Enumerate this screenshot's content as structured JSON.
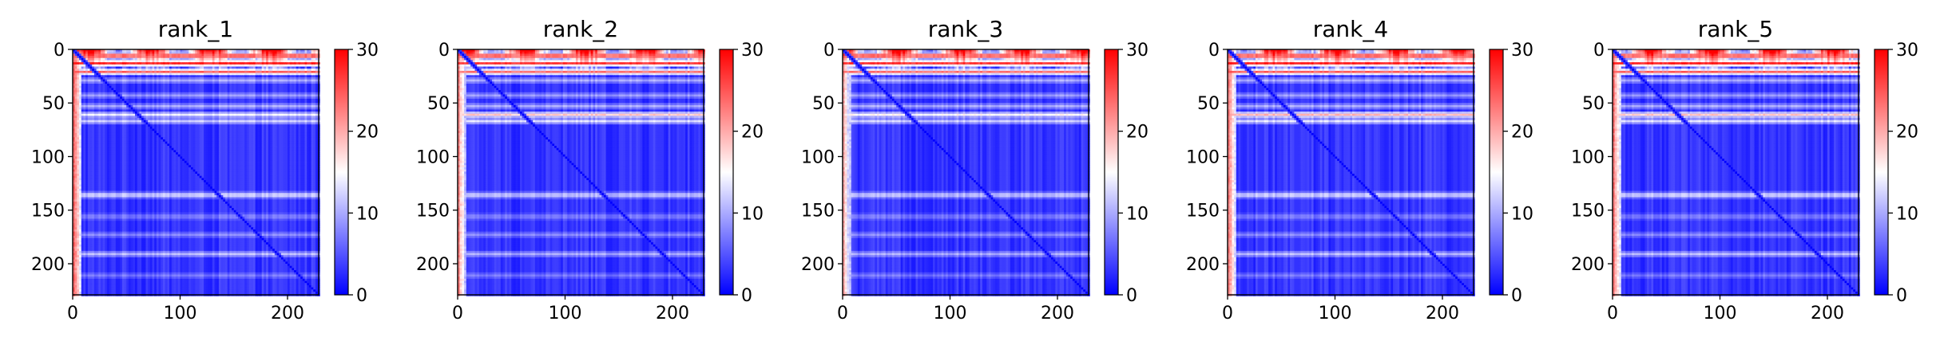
{
  "chart_data": [
    {
      "type": "heatmap",
      "title": "rank_1",
      "x_ticks": [
        0,
        100,
        200
      ],
      "y_ticks": [
        0,
        50,
        100,
        150,
        200
      ],
      "xlim": [
        0,
        229
      ],
      "ylim": [
        229,
        0
      ],
      "n_residues": 229,
      "colormap": "bwr",
      "colorbar": {
        "min": 0,
        "max": 30,
        "ticks": [
          0,
          10,
          20,
          30
        ]
      },
      "features": {
        "top_band_value": 30,
        "left_band_value": 22,
        "background_value": 3,
        "diagonal_value": 0,
        "horizontal_stripes": [
          {
            "row": 5,
            "value": 30
          },
          {
            "row": 12,
            "value": 28
          },
          {
            "row": 20,
            "value": 24
          },
          {
            "row": 28,
            "value": 10
          },
          {
            "row": 42,
            "value": 9
          },
          {
            "row": 52,
            "value": 10
          },
          {
            "row": 60,
            "value": 14
          },
          {
            "row": 66,
            "value": 12
          },
          {
            "row": 135,
            "value": 14
          },
          {
            "row": 155,
            "value": 8
          },
          {
            "row": 172,
            "value": 8
          },
          {
            "row": 190,
            "value": 11
          },
          {
            "row": 210,
            "value": 7
          }
        ]
      }
    },
    {
      "type": "heatmap",
      "title": "rank_2",
      "x_ticks": [
        0,
        100,
        200
      ],
      "y_ticks": [
        0,
        50,
        100,
        150,
        200
      ],
      "xlim": [
        0,
        229
      ],
      "ylim": [
        229,
        0
      ],
      "n_residues": 229,
      "colormap": "bwr",
      "colorbar": {
        "min": 0,
        "max": 30,
        "ticks": [
          0,
          10,
          20,
          30
        ]
      },
      "features": {
        "top_band_value": 30,
        "left_band_value": 20,
        "background_value": 3,
        "diagonal_value": 0,
        "horizontal_stripes": [
          {
            "row": 5,
            "value": 30
          },
          {
            "row": 12,
            "value": 27
          },
          {
            "row": 20,
            "value": 23
          },
          {
            "row": 28,
            "value": 10
          },
          {
            "row": 42,
            "value": 9
          },
          {
            "row": 52,
            "value": 10
          },
          {
            "row": 60,
            "value": 18
          },
          {
            "row": 66,
            "value": 13
          },
          {
            "row": 135,
            "value": 13
          },
          {
            "row": 155,
            "value": 8
          },
          {
            "row": 172,
            "value": 8
          },
          {
            "row": 190,
            "value": 10
          },
          {
            "row": 210,
            "value": 7
          }
        ]
      }
    },
    {
      "type": "heatmap",
      "title": "rank_3",
      "x_ticks": [
        0,
        100,
        200
      ],
      "y_ticks": [
        0,
        50,
        100,
        150,
        200
      ],
      "xlim": [
        0,
        229
      ],
      "ylim": [
        229,
        0
      ],
      "n_residues": 229,
      "colormap": "bwr",
      "colorbar": {
        "min": 0,
        "max": 30,
        "ticks": [
          0,
          10,
          20,
          30
        ]
      },
      "features": {
        "top_band_value": 30,
        "left_band_value": 18,
        "background_value": 3,
        "diagonal_value": 0,
        "horizontal_stripes": [
          {
            "row": 5,
            "value": 30
          },
          {
            "row": 12,
            "value": 27
          },
          {
            "row": 20,
            "value": 23
          },
          {
            "row": 28,
            "value": 10
          },
          {
            "row": 42,
            "value": 9
          },
          {
            "row": 52,
            "value": 10
          },
          {
            "row": 60,
            "value": 15
          },
          {
            "row": 66,
            "value": 12
          },
          {
            "row": 135,
            "value": 13
          },
          {
            "row": 155,
            "value": 8
          },
          {
            "row": 172,
            "value": 8
          },
          {
            "row": 190,
            "value": 10
          },
          {
            "row": 210,
            "value": 7
          }
        ]
      }
    },
    {
      "type": "heatmap",
      "title": "rank_4",
      "x_ticks": [
        0,
        100,
        200
      ],
      "y_ticks": [
        0,
        50,
        100,
        150,
        200
      ],
      "xlim": [
        0,
        229
      ],
      "ylim": [
        229,
        0
      ],
      "n_residues": 229,
      "colormap": "bwr",
      "colorbar": {
        "min": 0,
        "max": 30,
        "ticks": [
          0,
          10,
          20,
          30
        ]
      },
      "features": {
        "top_band_value": 30,
        "left_band_value": 20,
        "background_value": 3,
        "diagonal_value": 0,
        "horizontal_stripes": [
          {
            "row": 5,
            "value": 30
          },
          {
            "row": 12,
            "value": 28
          },
          {
            "row": 20,
            "value": 24
          },
          {
            "row": 28,
            "value": 10
          },
          {
            "row": 42,
            "value": 9
          },
          {
            "row": 52,
            "value": 10
          },
          {
            "row": 60,
            "value": 19
          },
          {
            "row": 66,
            "value": 13
          },
          {
            "row": 135,
            "value": 14
          },
          {
            "row": 155,
            "value": 8
          },
          {
            "row": 172,
            "value": 8
          },
          {
            "row": 190,
            "value": 11
          },
          {
            "row": 210,
            "value": 7
          }
        ]
      }
    },
    {
      "type": "heatmap",
      "title": "rank_5",
      "x_ticks": [
        0,
        100,
        200
      ],
      "y_ticks": [
        0,
        50,
        100,
        150,
        200
      ],
      "xlim": [
        0,
        229
      ],
      "ylim": [
        229,
        0
      ],
      "n_residues": 229,
      "colormap": "bwr",
      "colorbar": {
        "min": 0,
        "max": 30,
        "ticks": [
          0,
          10,
          20,
          30
        ]
      },
      "features": {
        "top_band_value": 30,
        "left_band_value": 21,
        "background_value": 3,
        "diagonal_value": 0,
        "horizontal_stripes": [
          {
            "row": 5,
            "value": 30
          },
          {
            "row": 12,
            "value": 28
          },
          {
            "row": 20,
            "value": 24
          },
          {
            "row": 28,
            "value": 10
          },
          {
            "row": 42,
            "value": 9
          },
          {
            "row": 52,
            "value": 10
          },
          {
            "row": 60,
            "value": 18
          },
          {
            "row": 66,
            "value": 13
          },
          {
            "row": 135,
            "value": 14
          },
          {
            "row": 155,
            "value": 8
          },
          {
            "row": 172,
            "value": 8
          },
          {
            "row": 190,
            "value": 11
          },
          {
            "row": 210,
            "value": 7
          }
        ]
      }
    }
  ],
  "colors": {
    "low": "#0000ff",
    "mid": "#ffffff",
    "high": "#ff0000",
    "text": "#000000",
    "background": "#ffffff"
  }
}
